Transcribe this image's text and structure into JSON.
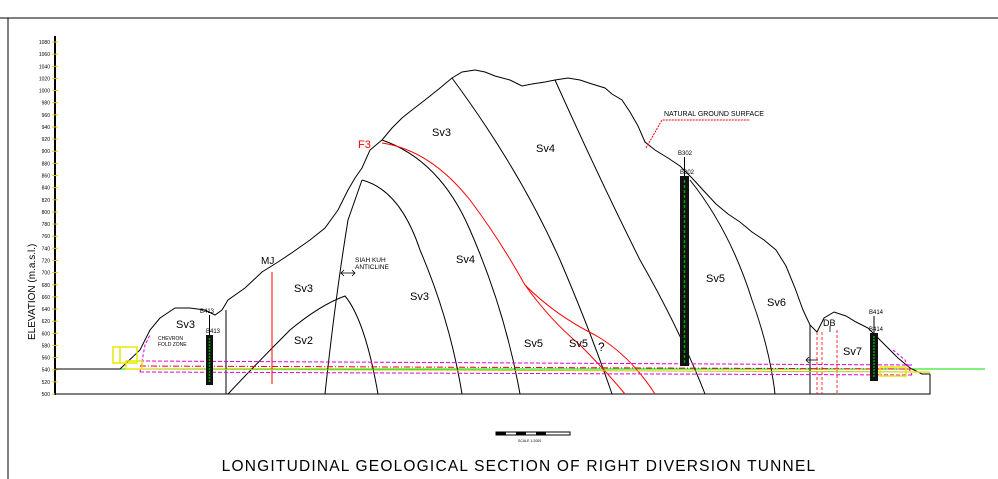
{
  "title": "LONGITUDINAL GEOLOGICAL SECTION OF RIGHT DIVERSION TUNNEL",
  "axis": {
    "label": "ELEVATION (m.a.s.l.)",
    "ticks": [
      "1080",
      "1060",
      "1040",
      "1020",
      "1000",
      "980",
      "960",
      "940",
      "920",
      "900",
      "880",
      "860",
      "840",
      "820",
      "800",
      "780",
      "760",
      "740",
      "720",
      "700",
      "680",
      "660",
      "640",
      "620",
      "600",
      "580",
      "560",
      "540",
      "520",
      "500"
    ]
  },
  "labels": {
    "natural_ground": "NATURAL GROUND SURFACE",
    "f3": "F3",
    "mj": "MJ",
    "siah_kuh": "SIAH KUH",
    "anticline": "ANTICLINE",
    "chevron": "CHEVRON",
    "fold_zone": "FOLD ZONE",
    "db": "DB",
    "question": "?",
    "scale": "SCALE 1:2000"
  },
  "units": {
    "sv3_left": "Sv3",
    "sv3_mid": "Sv3",
    "sv3_center": "Sv3",
    "sv3_top": "Sv3",
    "sv2": "Sv2",
    "sv4_top": "Sv4",
    "sv4_mid": "Sv4",
    "sv5_a": "Sv5",
    "sv5_b": "Sv5",
    "sv5_right": "Sv5",
    "sv6": "Sv6",
    "sv7": "Sv7"
  },
  "boreholes": {
    "b413": "B413",
    "b302": "B302",
    "b414": "B414"
  },
  "colors": {
    "fault": "#ff0000",
    "green_line": "#00e000",
    "magenta_line": "#e000e0",
    "yellow_portal": "#e8e800",
    "axis_yellow": "#f0c000",
    "borehole_green": "#00a000"
  }
}
